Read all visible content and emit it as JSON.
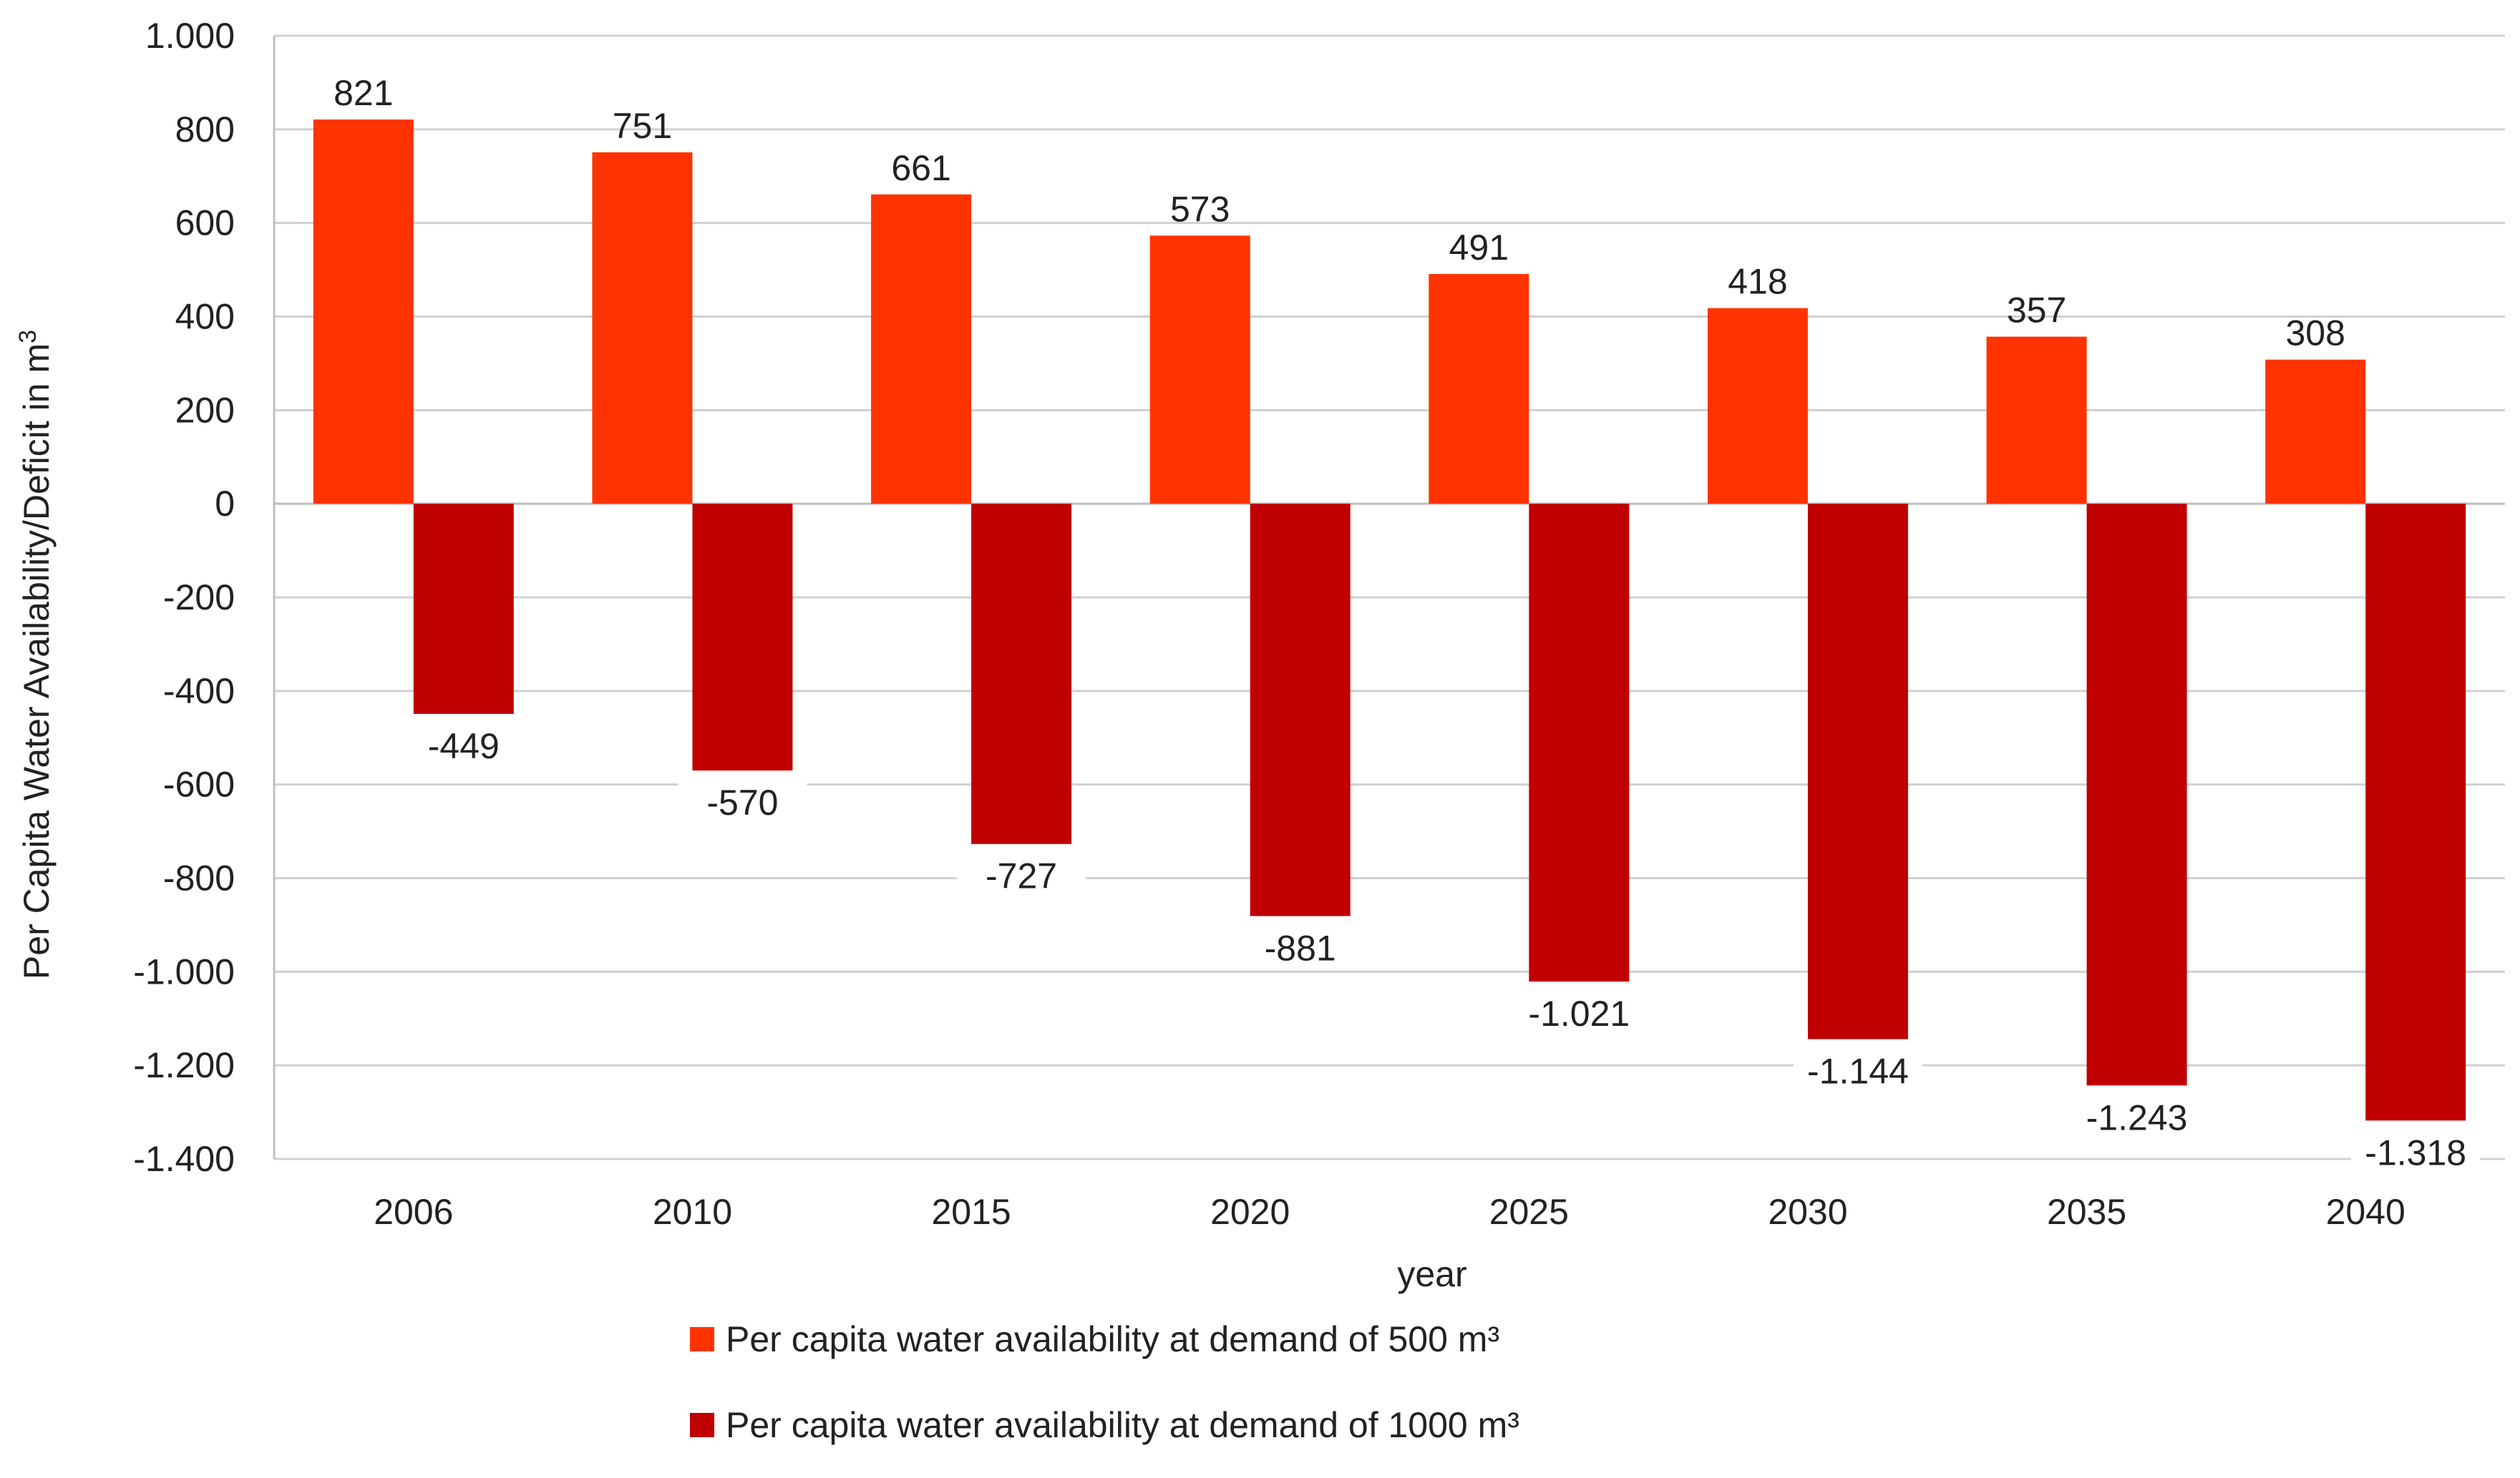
{
  "chart_data": {
    "type": "bar",
    "title": "",
    "xlabel": "year",
    "ylabel": "Per Capita Water Availability/Deficit in m",
    "ylabel_superscript": "3",
    "categories": [
      "2006",
      "2010",
      "2015",
      "2020",
      "2025",
      "2030",
      "2035",
      "2040"
    ],
    "ylim": [
      -1400,
      1000
    ],
    "yticks": [
      1000,
      800,
      600,
      400,
      200,
      0,
      -200,
      -400,
      -600,
      -800,
      -1000,
      -1200,
      -1400
    ],
    "ytick_labels": [
      "1.000",
      "800",
      "600",
      "400",
      "200",
      "0",
      "-200",
      "-400",
      "-600",
      "-800",
      "-1.000",
      "-1.200",
      "-1.400"
    ],
    "grid": true,
    "legend_position": "bottom",
    "series": [
      {
        "name": "Per capita water availability at demand of 500 m³",
        "color": "#ff3300",
        "values": [
          821,
          751,
          661,
          573,
          491,
          418,
          357,
          308
        ],
        "value_labels": [
          "821",
          "751",
          "661",
          "573",
          "491",
          "418",
          "357",
          "308"
        ]
      },
      {
        "name": "Per capita water availability at demand of 1000 m³",
        "color": "#c00000",
        "values": [
          -449,
          -570,
          -727,
          -881,
          -1021,
          -1144,
          -1243,
          -1318
        ],
        "value_labels": [
          "-449",
          "-570",
          "-727",
          "-881",
          "-1.021",
          "-1.144",
          "-1.243",
          "-1.318"
        ]
      }
    ]
  }
}
